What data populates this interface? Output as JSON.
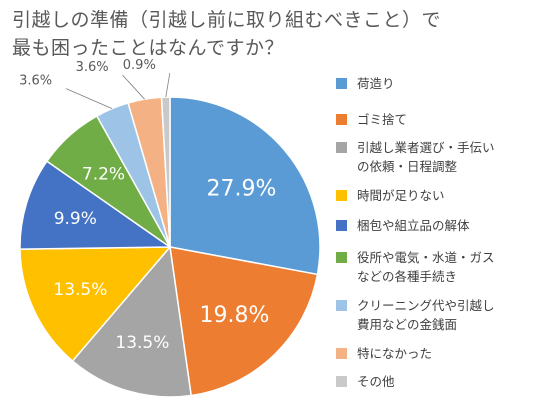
{
  "chart_data": {
    "type": "pie",
    "title_lines": [
      "引越しの準備（引越し前に取り組むべきこと）で",
      "最も困ったことはなんですか？"
    ],
    "legend_position": "right",
    "slices": [
      {
        "label": "荷造り",
        "value": 27.9,
        "value_label": "27.9%",
        "color": "#5B9BD5"
      },
      {
        "label": "ゴミ捨て",
        "value": 19.8,
        "value_label": "19.8%",
        "color": "#ED7D31"
      },
      {
        "label": "引越し業者選び・手伝い\nの依頼・日程調整",
        "value": 13.5,
        "value_label": "13.5%",
        "color": "#A5A5A5"
      },
      {
        "label": "時間が足りない",
        "value": 13.5,
        "value_label": "13.5%",
        "color": "#FFC000"
      },
      {
        "label": "梱包や組立品の解体",
        "value": 9.9,
        "value_label": "9.9%",
        "color": "#4472C4"
      },
      {
        "label": "役所や電気・水道・ガス\nなどの各種手続き",
        "value": 7.2,
        "value_label": "7.2%",
        "color": "#70AD47"
      },
      {
        "label": "クリーニング代や引越し\n費用などの金銭面",
        "value": 3.6,
        "value_label": "3.6%",
        "color": "#9DC3E6"
      },
      {
        "label": "特になかった",
        "value": 3.6,
        "value_label": "3.6%",
        "color": "#F4B183"
      },
      {
        "label": "その他",
        "value": 0.9,
        "value_label": "0.9%",
        "color": "#C9C9C9"
      }
    ]
  }
}
